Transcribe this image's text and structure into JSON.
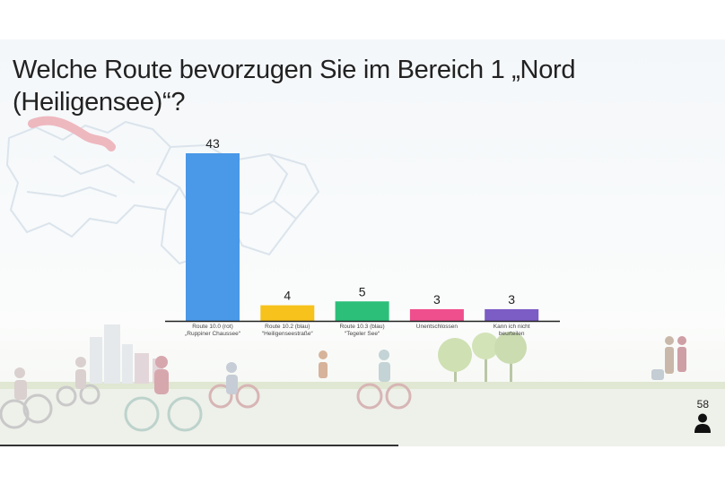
{
  "title": "Welche Route bevorzugen Sie im Bereich 1 „Nord (Heiligensee)“?",
  "vote_count": "58",
  "icons": {
    "participants": "person-icon"
  },
  "chart_data": {
    "type": "bar",
    "title": "Welche Route bevorzugen Sie im Bereich 1 „Nord (Heiligensee)“?",
    "categories": [
      [
        "Route 10.0 (rot)",
        "„Ruppiner Chaussee“"
      ],
      [
        "Route 10.2 (blau)",
        "“Heiligenseestraße“"
      ],
      [
        "Route 10.3 (blau)",
        "“Tegeler See“"
      ],
      [
        "Unentschlossen"
      ],
      [
        "Kann ich nicht",
        "beurteilen"
      ]
    ],
    "values": [
      43,
      4,
      5,
      3,
      3
    ],
    "colors": [
      "#4a98e8",
      "#f6c21b",
      "#2bbf7a",
      "#ef4f8d",
      "#7c5cc5"
    ],
    "ylim": [
      0,
      43
    ],
    "xlabel": "",
    "ylabel": "",
    "grid": false,
    "legend": "none",
    "data_labels": true
  }
}
